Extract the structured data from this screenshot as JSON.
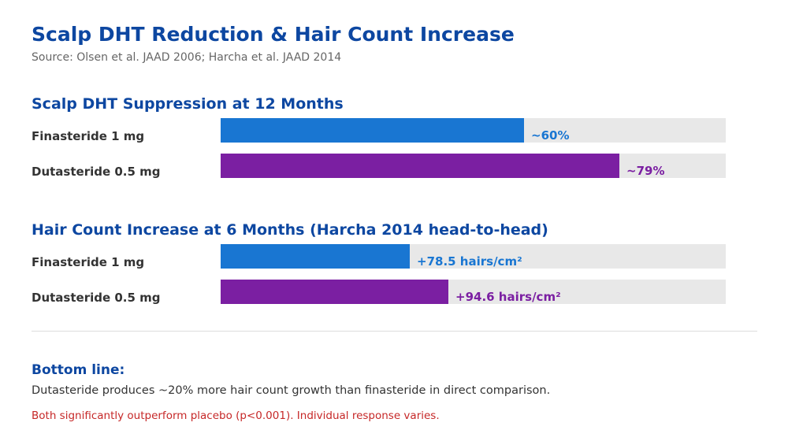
{
  "header": {
    "title": "Scalp DHT Reduction & Hair Count Increase",
    "source": "Source: Olsen et al. JAAD 2006; Harcha et al. JAAD 2014"
  },
  "chart_data": [
    {
      "type": "bar",
      "orientation": "horizontal",
      "title": "Scalp DHT Suppression at 12 Months",
      "categories": [
        "Finasteride 1 mg",
        "Dutasteride 0.5 mg"
      ],
      "values": [
        60,
        79
      ],
      "value_labels": [
        "~60%",
        "~79%"
      ],
      "colors": [
        "#1976d2",
        "#7b1fa2"
      ],
      "xlim": [
        0,
        100
      ],
      "grid": false
    },
    {
      "type": "bar",
      "orientation": "horizontal",
      "title": "Hair Count Increase at 6 Months (Harcha 2014 head-to-head)",
      "categories": [
        "Finasteride 1 mg",
        "Dutasteride 0.5 mg"
      ],
      "values": [
        78.5,
        94.6
      ],
      "value_labels": [
        "+78.5 hairs/cm²",
        "+94.6 hairs/cm²"
      ],
      "colors": [
        "#1976d2",
        "#7b1fa2"
      ],
      "xlim": [
        0,
        210
      ],
      "grid": false
    }
  ],
  "footer": {
    "bottom_title": "Bottom line:",
    "bottom_text": "Dutasteride produces ~20% more hair count growth than finasteride in direct comparison.",
    "note": "Both significantly outperform placebo (p<0.001). Individual response varies."
  }
}
